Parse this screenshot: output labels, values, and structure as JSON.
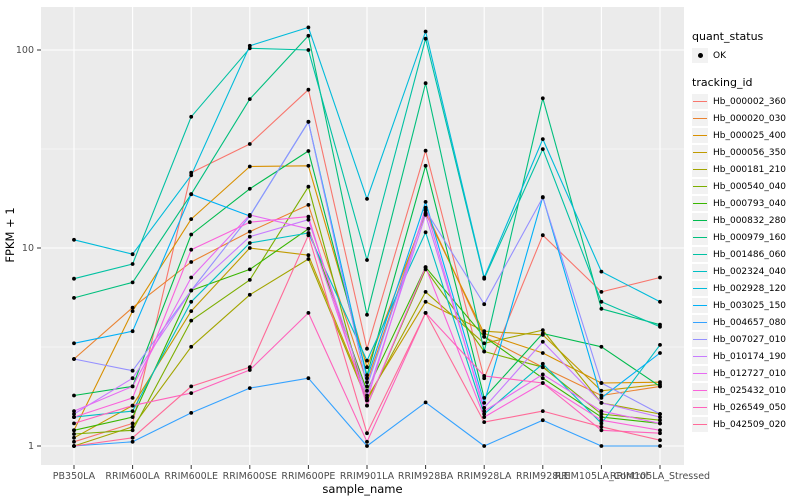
{
  "legend": {
    "quant_title": "quant_status",
    "quant_items": [
      {
        "label": "OK",
        "marker": "point-icon",
        "marker_color": "#000000"
      }
    ],
    "tracking_title": "tracking_id"
  },
  "chart_data": {
    "type": "line",
    "title": "",
    "xlabel": "sample_name",
    "ylabel": "FPKM + 1",
    "yscale": "log10",
    "yticks": [
      1,
      10,
      100
    ],
    "ytick_labels": [
      "1",
      "10",
      "100"
    ],
    "ylim": [
      0.8,
      165
    ],
    "grid": true,
    "legend_position": "right",
    "panel_bg": "#EBEBEB",
    "grid_color": "#FFFFFF",
    "tick_label_color": "#4D4D4D",
    "point_color": "#000000",
    "categories": [
      "PB350LA",
      "RRIM600LA",
      "RRIM600LE",
      "RRIM600SE",
      "RRIM600PE",
      "RRIM901LA",
      "RRIM928BA",
      "RRIM928LA",
      "RRIM928LE",
      "RRIM105LA_Control",
      "RRIM105LA_Stressed"
    ],
    "series": [
      {
        "name": "Hb_000002_360",
        "color": "#F8766D",
        "values": [
          1.05,
          1.3,
          24,
          33.5,
          63,
          3.1,
          31,
          2.2,
          11.6,
          6.0,
          7.1
        ]
      },
      {
        "name": "Hb_000020_030",
        "color": "#EA8331",
        "values": [
          2.75,
          5.0,
          8.5,
          12.1,
          16.5,
          2.1,
          15.5,
          3.56,
          2.5,
          1.8,
          2.0
        ]
      },
      {
        "name": "Hb_000025_400",
        "color": "#D89000",
        "values": [
          1.2,
          4.8,
          14,
          25.8,
          26,
          2.5,
          15,
          3.7,
          2.95,
          2.08,
          2.1
        ]
      },
      {
        "name": "Hb_000056_350",
        "color": "#C09B00",
        "values": [
          1.1,
          1.6,
          4.8,
          10.0,
          9.2,
          1.75,
          5.35,
          3.8,
          3.64,
          1.9,
          2.05
        ]
      },
      {
        "name": "Hb_000181_210",
        "color": "#A3A500",
        "values": [
          1.0,
          1.25,
          3.17,
          5.8,
          8.8,
          1.7,
          6.0,
          3.3,
          3.85,
          1.65,
          1.45
        ]
      },
      {
        "name": "Hb_000540_040",
        "color": "#7CAE00",
        "values": [
          1.15,
          1.2,
          4.3,
          6.9,
          20.4,
          1.6,
          7.8,
          3.0,
          2.5,
          1.45,
          1.35
        ]
      },
      {
        "name": "Hb_000793_040",
        "color": "#39B600",
        "values": [
          1.2,
          1.4,
          6.1,
          7.8,
          12.5,
          1.9,
          8.0,
          3.56,
          2.2,
          1.4,
          1.3
        ]
      },
      {
        "name": "Hb_000832_280",
        "color": "#00BB4E",
        "values": [
          1.8,
          2.0,
          11.7,
          19.9,
          30.9,
          2.28,
          26,
          1.75,
          3.7,
          3.17,
          2.0
        ]
      },
      {
        "name": "Hb_000979_160",
        "color": "#00BF7D",
        "values": [
          5.6,
          6.7,
          18.7,
          56.5,
          118,
          4.6,
          68,
          3.0,
          57,
          4.93,
          4.1
        ]
      },
      {
        "name": "Hb_001486_060",
        "color": "#00C1A3",
        "values": [
          7.0,
          8.3,
          46,
          102,
          100,
          8.7,
          114,
          7.0,
          31.6,
          5.35,
          4.0
        ]
      },
      {
        "name": "Hb_002324_040",
        "color": "#00BFC4",
        "values": [
          1.4,
          1.5,
          5.35,
          10.6,
          11.9,
          2.7,
          12,
          1.45,
          2.6,
          1.3,
          3.24
        ]
      },
      {
        "name": "Hb_002928_120",
        "color": "#00BBDA",
        "values": [
          11,
          9.3,
          23.3,
          105,
          130,
          17.7,
          124,
          7.1,
          35.5,
          7.6,
          5.35
        ]
      },
      {
        "name": "Hb_003025_150",
        "color": "#00B0F6",
        "values": [
          3.3,
          3.8,
          18.7,
          14.5,
          43.4,
          2.2,
          17.1,
          1.65,
          18.1,
          1.75,
          2.95
        ]
      },
      {
        "name": "Hb_004657_080",
        "color": "#35A2FF",
        "values": [
          1.0,
          1.05,
          1.47,
          1.96,
          2.2,
          1.0,
          1.66,
          1.0,
          1.35,
          1.0,
          1.0
        ]
      },
      {
        "name": "Hb_007027_010",
        "color": "#9590FF",
        "values": [
          2.75,
          2.4,
          6.1,
          14.5,
          43.4,
          2.0,
          15.5,
          5.2,
          18.0,
          2.08,
          1.45
        ]
      },
      {
        "name": "Hb_010174_190",
        "color": "#C77CFF",
        "values": [
          1.45,
          2.2,
          6.1,
          11.4,
          13.9,
          1.8,
          14.7,
          1.56,
          3.36,
          1.65,
          1.4
        ]
      },
      {
        "name": "Hb_012727_010",
        "color": "#E76BF3",
        "values": [
          1.5,
          2.0,
          7.1,
          14.7,
          12.5,
          1.7,
          16,
          1.5,
          2.3,
          1.5,
          1.3
        ]
      },
      {
        "name": "Hb_025432_010",
        "color": "#FA62DB",
        "values": [
          1.4,
          1.75,
          9.8,
          13.5,
          14.4,
          1.6,
          8.0,
          1.4,
          2.08,
          1.35,
          1.2
        ]
      },
      {
        "name": "Hb_026549_050",
        "color": "#FF62BC",
        "values": [
          1.3,
          1.6,
          1.85,
          2.42,
          4.7,
          1.05,
          4.7,
          2.26,
          2.08,
          1.2,
          1.16
        ]
      },
      {
        "name": "Hb_042509_020",
        "color": "#FF6A98",
        "values": [
          1.0,
          1.1,
          2.0,
          2.5,
          11.6,
          1.16,
          4.7,
          1.32,
          1.5,
          1.25,
          1.07
        ]
      }
    ]
  }
}
